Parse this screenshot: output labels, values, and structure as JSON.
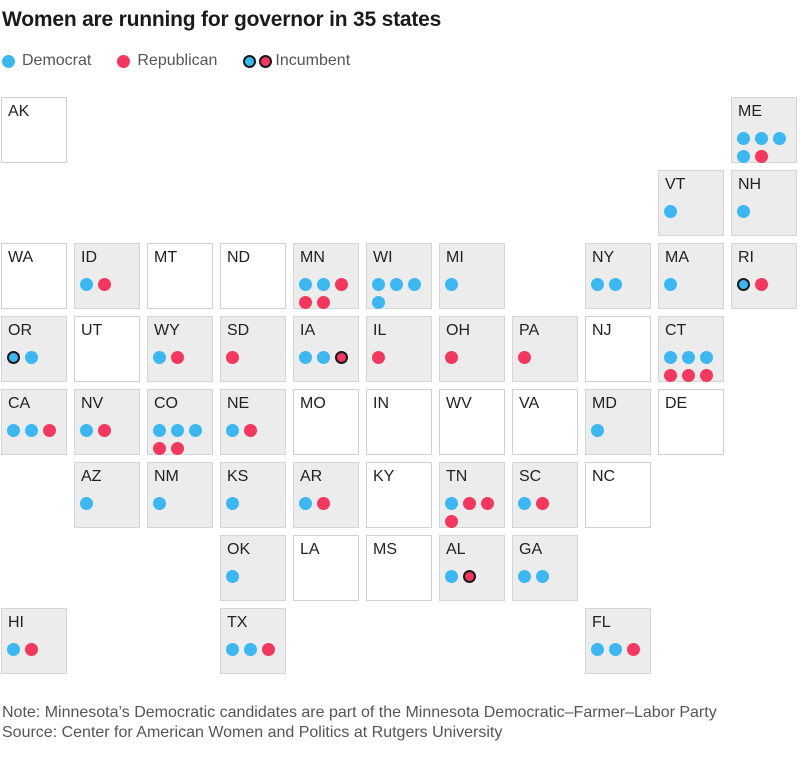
{
  "title": "Women are running for governor in 35 states",
  "colors": {
    "democrat": "#3db7f0",
    "republican": "#f3385f"
  },
  "legend": {
    "democrat": "Democrat",
    "republican": "Republican",
    "incumbent": "Incumbent"
  },
  "chart_data": {
    "type": "tile-grid-map",
    "title": "Women are running for governor in 35 states",
    "states": [
      {
        "abbr": "AK",
        "col": 0,
        "row": 0,
        "candidates": []
      },
      {
        "abbr": "ME",
        "col": 10,
        "row": 0,
        "candidates": [
          {
            "party": "D"
          },
          {
            "party": "D"
          },
          {
            "party": "D"
          },
          {
            "party": "D"
          },
          {
            "party": "R"
          }
        ]
      },
      {
        "abbr": "VT",
        "col": 9,
        "row": 1,
        "candidates": [
          {
            "party": "D"
          }
        ]
      },
      {
        "abbr": "NH",
        "col": 10,
        "row": 1,
        "candidates": [
          {
            "party": "D"
          }
        ]
      },
      {
        "abbr": "WA",
        "col": 0,
        "row": 2,
        "candidates": []
      },
      {
        "abbr": "ID",
        "col": 1,
        "row": 2,
        "candidates": [
          {
            "party": "D"
          },
          {
            "party": "R"
          }
        ]
      },
      {
        "abbr": "MT",
        "col": 2,
        "row": 2,
        "candidates": []
      },
      {
        "abbr": "ND",
        "col": 3,
        "row": 2,
        "candidates": []
      },
      {
        "abbr": "MN",
        "col": 4,
        "row": 2,
        "candidates": [
          {
            "party": "D"
          },
          {
            "party": "D"
          },
          {
            "party": "R"
          },
          {
            "party": "R"
          },
          {
            "party": "R"
          }
        ]
      },
      {
        "abbr": "WI",
        "col": 5,
        "row": 2,
        "candidates": [
          {
            "party": "D"
          },
          {
            "party": "D"
          },
          {
            "party": "D"
          },
          {
            "party": "D"
          }
        ]
      },
      {
        "abbr": "MI",
        "col": 6,
        "row": 2,
        "candidates": [
          {
            "party": "D"
          }
        ]
      },
      {
        "abbr": "NY",
        "col": 8,
        "row": 2,
        "candidates": [
          {
            "party": "D"
          },
          {
            "party": "D"
          }
        ]
      },
      {
        "abbr": "MA",
        "col": 9,
        "row": 2,
        "candidates": [
          {
            "party": "D"
          }
        ]
      },
      {
        "abbr": "RI",
        "col": 10,
        "row": 2,
        "candidates": [
          {
            "party": "D",
            "incumbent": true
          },
          {
            "party": "R"
          }
        ]
      },
      {
        "abbr": "OR",
        "col": 0,
        "row": 3,
        "candidates": [
          {
            "party": "D",
            "incumbent": true
          },
          {
            "party": "D"
          }
        ]
      },
      {
        "abbr": "UT",
        "col": 1,
        "row": 3,
        "candidates": []
      },
      {
        "abbr": "WY",
        "col": 2,
        "row": 3,
        "candidates": [
          {
            "party": "D"
          },
          {
            "party": "R"
          }
        ]
      },
      {
        "abbr": "SD",
        "col": 3,
        "row": 3,
        "candidates": [
          {
            "party": "R"
          }
        ]
      },
      {
        "abbr": "IA",
        "col": 4,
        "row": 3,
        "candidates": [
          {
            "party": "D"
          },
          {
            "party": "D"
          },
          {
            "party": "R",
            "incumbent": true
          }
        ]
      },
      {
        "abbr": "IL",
        "col": 5,
        "row": 3,
        "candidates": [
          {
            "party": "R"
          }
        ]
      },
      {
        "abbr": "OH",
        "col": 6,
        "row": 3,
        "candidates": [
          {
            "party": "R"
          }
        ]
      },
      {
        "abbr": "PA",
        "col": 7,
        "row": 3,
        "candidates": [
          {
            "party": "R"
          }
        ]
      },
      {
        "abbr": "NJ",
        "col": 8,
        "row": 3,
        "candidates": []
      },
      {
        "abbr": "CT",
        "col": 9,
        "row": 3,
        "candidates": [
          {
            "party": "D"
          },
          {
            "party": "D"
          },
          {
            "party": "D"
          },
          {
            "party": "R"
          },
          {
            "party": "R"
          },
          {
            "party": "R"
          }
        ]
      },
      {
        "abbr": "CA",
        "col": 0,
        "row": 4,
        "candidates": [
          {
            "party": "D"
          },
          {
            "party": "D"
          },
          {
            "party": "R"
          }
        ]
      },
      {
        "abbr": "NV",
        "col": 1,
        "row": 4,
        "candidates": [
          {
            "party": "D"
          },
          {
            "party": "R"
          }
        ]
      },
      {
        "abbr": "CO",
        "col": 2,
        "row": 4,
        "candidates": [
          {
            "party": "D"
          },
          {
            "party": "D"
          },
          {
            "party": "D"
          },
          {
            "party": "R"
          },
          {
            "party": "R"
          }
        ]
      },
      {
        "abbr": "NE",
        "col": 3,
        "row": 4,
        "candidates": [
          {
            "party": "D"
          },
          {
            "party": "R"
          }
        ]
      },
      {
        "abbr": "MO",
        "col": 4,
        "row": 4,
        "candidates": []
      },
      {
        "abbr": "IN",
        "col": 5,
        "row": 4,
        "candidates": []
      },
      {
        "abbr": "WV",
        "col": 6,
        "row": 4,
        "candidates": []
      },
      {
        "abbr": "VA",
        "col": 7,
        "row": 4,
        "candidates": []
      },
      {
        "abbr": "MD",
        "col": 8,
        "row": 4,
        "candidates": [
          {
            "party": "D"
          }
        ]
      },
      {
        "abbr": "DE",
        "col": 9,
        "row": 4,
        "candidates": []
      },
      {
        "abbr": "AZ",
        "col": 1,
        "row": 5,
        "candidates": [
          {
            "party": "D"
          }
        ]
      },
      {
        "abbr": "NM",
        "col": 2,
        "row": 5,
        "candidates": [
          {
            "party": "D"
          }
        ]
      },
      {
        "abbr": "KS",
        "col": 3,
        "row": 5,
        "candidates": [
          {
            "party": "D"
          }
        ]
      },
      {
        "abbr": "AR",
        "col": 4,
        "row": 5,
        "candidates": [
          {
            "party": "D"
          },
          {
            "party": "R"
          }
        ]
      },
      {
        "abbr": "KY",
        "col": 5,
        "row": 5,
        "candidates": []
      },
      {
        "abbr": "TN",
        "col": 6,
        "row": 5,
        "candidates": [
          {
            "party": "D"
          },
          {
            "party": "R"
          },
          {
            "party": "R"
          },
          {
            "party": "R"
          }
        ]
      },
      {
        "abbr": "SC",
        "col": 7,
        "row": 5,
        "candidates": [
          {
            "party": "D"
          },
          {
            "party": "R"
          }
        ]
      },
      {
        "abbr": "NC",
        "col": 8,
        "row": 5,
        "candidates": []
      },
      {
        "abbr": "OK",
        "col": 3,
        "row": 6,
        "candidates": [
          {
            "party": "D"
          }
        ]
      },
      {
        "abbr": "LA",
        "col": 4,
        "row": 6,
        "candidates": []
      },
      {
        "abbr": "MS",
        "col": 5,
        "row": 6,
        "candidates": []
      },
      {
        "abbr": "AL",
        "col": 6,
        "row": 6,
        "candidates": [
          {
            "party": "D"
          },
          {
            "party": "R",
            "incumbent": true
          }
        ]
      },
      {
        "abbr": "GA",
        "col": 7,
        "row": 6,
        "candidates": [
          {
            "party": "D"
          },
          {
            "party": "D"
          }
        ]
      },
      {
        "abbr": "HI",
        "col": 0,
        "row": 7,
        "candidates": [
          {
            "party": "D"
          },
          {
            "party": "R"
          }
        ]
      },
      {
        "abbr": "TX",
        "col": 3,
        "row": 7,
        "candidates": [
          {
            "party": "D"
          },
          {
            "party": "D"
          },
          {
            "party": "R"
          }
        ]
      },
      {
        "abbr": "FL",
        "col": 8,
        "row": 7,
        "candidates": [
          {
            "party": "D"
          },
          {
            "party": "D"
          },
          {
            "party": "R"
          }
        ]
      }
    ]
  },
  "notes": {
    "note": "Note: Minnesota’s Democratic candidates are part of the Minnesota Democratic–Farmer–Labor Party",
    "source": "Source: Center for American Women and Politics at Rutgers University"
  }
}
